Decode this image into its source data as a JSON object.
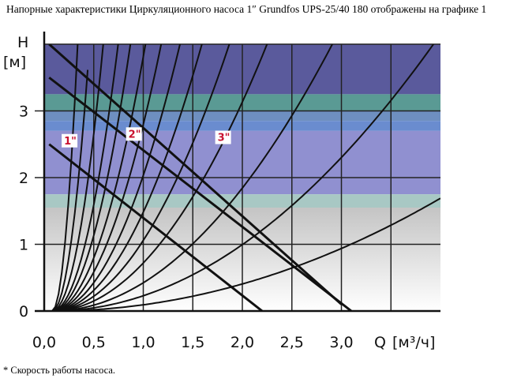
{
  "caption": "Напорные характеристики Циркуляционного насоса 1″ Grundfos UPS-25/40 180 отображены на графике 1",
  "footnote": "* Скорость работы насоса.",
  "chart_data": {
    "type": "line",
    "title": "",
    "xlabel": "Q [м³/ч]",
    "ylabel": "H [м]",
    "y_axis_letter": "H",
    "y_axis_unit": "[м]",
    "x_axis_letter": "Q",
    "x_axis_unit": "[м³/ч]",
    "xlim": [
      0.0,
      4.0
    ],
    "ylim": [
      0.0,
      4.0
    ],
    "x_ticks": [
      "0,0",
      "0,5",
      "1,0",
      "1,5",
      "2,0",
      "2,5",
      "3,0"
    ],
    "x_tick_values": [
      0.0,
      0.5,
      1.0,
      1.5,
      2.0,
      2.5,
      3.0
    ],
    "y_ticks": [
      "0",
      "1",
      "2",
      "3"
    ],
    "y_tick_values": [
      0,
      1,
      2,
      3
    ],
    "grid": true,
    "pump_curves": [
      {
        "label": "1\"",
        "x": [
          0.05,
          2.2
        ],
        "y": [
          2.5,
          0.0
        ]
      },
      {
        "label": "2\"",
        "x": [
          0.05,
          3.1
        ],
        "y": [
          3.5,
          0.0
        ]
      },
      {
        "label": "3\"",
        "x": [
          0.05,
          3.0
        ],
        "y": [
          4.0,
          0.1
        ]
      }
    ],
    "curve_label_positions": [
      {
        "label": "1\"",
        "x": 0.2,
        "y": 2.5
      },
      {
        "label": "2\"",
        "x": 0.85,
        "y": 2.6
      },
      {
        "label": "3\"",
        "x": 1.75,
        "y": 2.55
      }
    ],
    "system_curves_k": [
      60,
      28,
      15,
      9,
      6.4,
      4.5,
      3.3,
      2.4,
      1.75,
      1.25,
      0.85,
      0.5,
      0.27,
      0.11
    ],
    "system_curve_origin_x": 0.08,
    "background_bands": [
      {
        "from": 3.25,
        "to": 4.0,
        "color": "#5a5a9c"
      },
      {
        "from": 3.0,
        "to": 3.25,
        "color": "#5a9a94"
      },
      {
        "from": 2.85,
        "to": 3.0,
        "color": "#6e8fc0"
      },
      {
        "from": 2.7,
        "to": 2.85,
        "color": "#6a8ccf"
      },
      {
        "from": 1.75,
        "to": 2.7,
        "color": "#9090d0"
      },
      {
        "from": 1.55,
        "to": 1.75,
        "color": "#a8c8c4"
      },
      {
        "from": 0.0,
        "to": 1.55,
        "color": "gradient-grey"
      }
    ],
    "colors": {
      "grid": "#222222",
      "curve": "#111111",
      "label": "#c8102e"
    }
  }
}
